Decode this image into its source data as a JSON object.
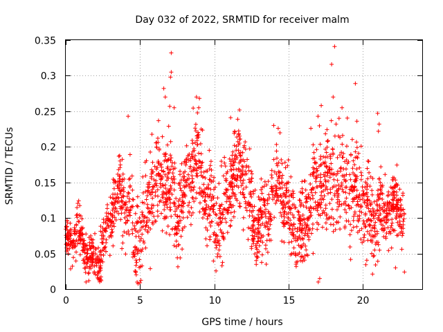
{
  "chart_data": {
    "type": "scatter",
    "title": "Day 032 of 2022, SRMTID for receiver malm",
    "xlabel": "GPS time / hours",
    "ylabel": "SRMTID / TECUs",
    "xlim": [
      0,
      24
    ],
    "ylim": [
      0,
      0.35
    ],
    "x_ticks": [
      0,
      5,
      10,
      15,
      20
    ],
    "x_tick_labels": [
      "0",
      "5",
      "10",
      "15",
      "20"
    ],
    "y_ticks": [
      0,
      0.05,
      0.1,
      0.15,
      0.2,
      0.25,
      0.3,
      0.35
    ],
    "y_tick_labels": [
      "0",
      "0.05",
      "0.1",
      "0.15",
      "0.2",
      "0.25",
      "0.3",
      "0.35"
    ],
    "grid": true,
    "marker": "+",
    "color": "#ff0000",
    "series": [
      {
        "name": "SRMTID",
        "trend": [
          [
            0.0,
            0.06
          ],
          [
            0.5,
            0.055
          ],
          [
            1.0,
            0.055
          ],
          [
            1.5,
            0.055
          ],
          [
            2.0,
            0.06
          ],
          [
            2.5,
            0.065
          ],
          [
            3.0,
            0.085
          ],
          [
            3.5,
            0.11
          ],
          [
            4.0,
            0.12
          ],
          [
            4.3,
            0.13
          ],
          [
            4.6,
            0.08
          ],
          [
            5.0,
            0.095
          ],
          [
            5.5,
            0.11
          ],
          [
            6.0,
            0.125
          ],
          [
            6.5,
            0.15
          ],
          [
            7.0,
            0.16
          ],
          [
            7.5,
            0.125
          ],
          [
            8.0,
            0.14
          ],
          [
            8.5,
            0.16
          ],
          [
            9.0,
            0.155
          ],
          [
            9.5,
            0.12
          ],
          [
            10.0,
            0.12
          ],
          [
            10.5,
            0.12
          ],
          [
            11.0,
            0.135
          ],
          [
            11.5,
            0.14
          ],
          [
            12.0,
            0.15
          ],
          [
            12.5,
            0.115
          ],
          [
            13.0,
            0.11
          ],
          [
            13.5,
            0.11
          ],
          [
            14.0,
            0.125
          ],
          [
            14.5,
            0.12
          ],
          [
            15.0,
            0.11
          ],
          [
            15.5,
            0.1
          ],
          [
            16.0,
            0.095
          ],
          [
            16.5,
            0.11
          ],
          [
            17.0,
            0.12
          ],
          [
            17.5,
            0.14
          ],
          [
            18.0,
            0.16
          ],
          [
            18.5,
            0.16
          ],
          [
            19.0,
            0.16
          ],
          [
            19.5,
            0.12
          ],
          [
            20.0,
            0.105
          ],
          [
            20.5,
            0.1
          ],
          [
            21.0,
            0.13
          ],
          [
            21.5,
            0.125
          ],
          [
            22.0,
            0.105
          ],
          [
            22.5,
            0.095
          ],
          [
            22.8,
            0.09
          ]
        ],
        "spread": [
          [
            0.0,
            0.018
          ],
          [
            3.0,
            0.025
          ],
          [
            4.0,
            0.035
          ],
          [
            6.5,
            0.055
          ],
          [
            7.5,
            0.045
          ],
          [
            9.0,
            0.04
          ],
          [
            12.0,
            0.04
          ],
          [
            15.0,
            0.035
          ],
          [
            17.5,
            0.045
          ],
          [
            19.0,
            0.05
          ],
          [
            20.5,
            0.035
          ],
          [
            22.8,
            0.03
          ]
        ],
        "outliers": [
          [
            7.1,
            0.332
          ],
          [
            7.1,
            0.305
          ],
          [
            7.05,
            0.298
          ],
          [
            6.6,
            0.282
          ],
          [
            6.7,
            0.27
          ],
          [
            7.0,
            0.257
          ],
          [
            7.3,
            0.255
          ],
          [
            4.2,
            0.243
          ],
          [
            8.8,
            0.27
          ],
          [
            9.0,
            0.268
          ],
          [
            8.95,
            0.255
          ],
          [
            11.1,
            0.241
          ],
          [
            14.0,
            0.23
          ],
          [
            14.3,
            0.226
          ],
          [
            16.5,
            0.226
          ],
          [
            17.2,
            0.258
          ],
          [
            18.1,
            0.341
          ],
          [
            17.9,
            0.316
          ],
          [
            18.0,
            0.27
          ],
          [
            18.6,
            0.255
          ],
          [
            19.5,
            0.289
          ],
          [
            19.6,
            0.236
          ],
          [
            21.0,
            0.247
          ],
          [
            21.1,
            0.232
          ],
          [
            21.05,
            0.222
          ],
          [
            17.0,
            0.01
          ],
          [
            17.1,
            0.015
          ],
          [
            18.4,
            0.24
          ],
          [
            18.2,
            0.232
          ],
          [
            22.2,
            0.03
          ],
          [
            22.8,
            0.024
          ],
          [
            20.6,
            0.05
          ],
          [
            4.7,
            0.025
          ],
          [
            13.5,
            0.035
          ],
          [
            15.5,
            0.035
          ]
        ],
        "point_count": 2300
      }
    ]
  }
}
